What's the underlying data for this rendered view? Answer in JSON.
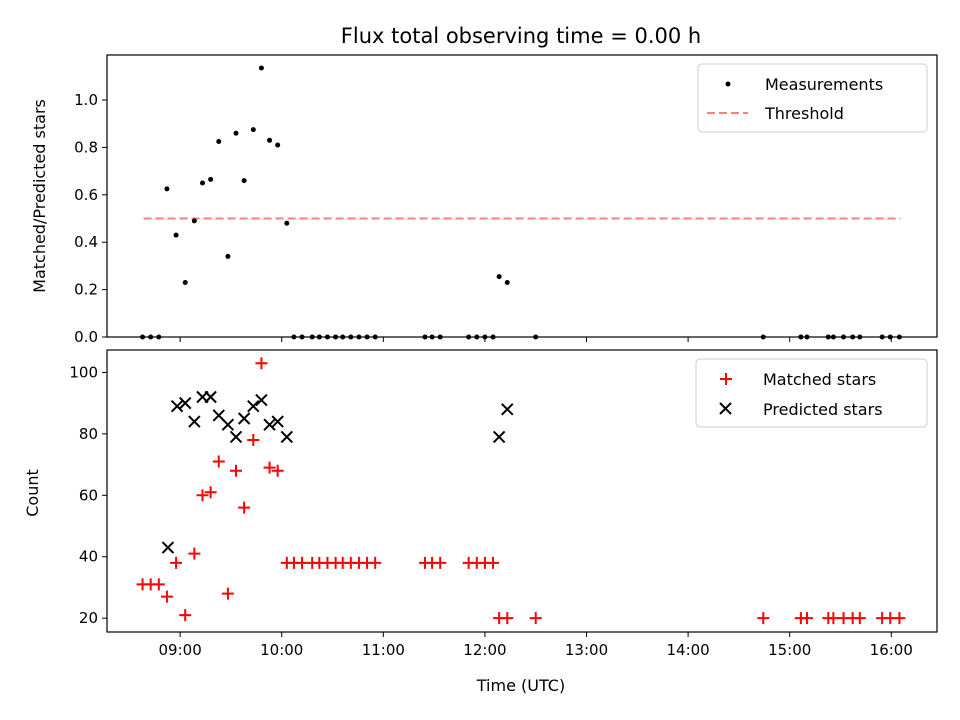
{
  "colors": {
    "threshold": "#ff7f7f",
    "matched": "#ff0000",
    "predicted": "#000000",
    "measurement": "#000000"
  },
  "chart_data": [
    {
      "type": "scatter",
      "title": "Flux total observing time = 0.00 h",
      "xlabel": "",
      "ylabel": "Matched/Predicted stars",
      "xlim": [
        8.28,
        16.45
      ],
      "ylim": [
        0.0,
        1.19
      ],
      "xticks": [
        9,
        10,
        11,
        12,
        13,
        14,
        15,
        16
      ],
      "yticks": [
        0.0,
        0.2,
        0.4,
        0.6,
        0.8,
        1.0
      ],
      "ytick_labels": [
        "0.0",
        "0.2",
        "0.4",
        "0.6",
        "0.8",
        "1.0"
      ],
      "legend": {
        "position": "top-right",
        "entries": [
          "Measurements",
          "Threshold"
        ]
      },
      "threshold": {
        "name": "Threshold",
        "y": 0.5,
        "x_range": [
          8.64,
          16.09
        ]
      },
      "series": [
        {
          "name": "Measurements",
          "x": [
            8.63,
            8.71,
            8.79,
            8.87,
            8.96,
            9.05,
            9.14,
            9.22,
            9.3,
            9.38,
            9.47,
            9.55,
            9.63,
            9.72,
            9.8,
            9.88,
            9.96,
            10.05,
            10.12,
            10.2,
            10.3,
            10.37,
            10.45,
            10.53,
            10.6,
            10.68,
            10.76,
            10.84,
            10.92,
            11.41,
            11.48,
            11.56,
            11.84,
            11.92,
            12.0,
            12.08,
            12.14,
            12.22,
            12.5,
            14.74,
            15.11,
            15.17,
            15.38,
            15.43,
            15.53,
            15.62,
            15.69,
            15.91,
            15.99,
            16.08
          ],
          "y": [
            0.0,
            0.0,
            0.0,
            0.625,
            0.43,
            0.23,
            0.49,
            0.65,
            0.665,
            0.825,
            0.34,
            0.86,
            0.66,
            0.875,
            1.135,
            0.83,
            0.81,
            0.48,
            0.0,
            0.0,
            0.0,
            0.0,
            0.0,
            0.0,
            0.0,
            0.0,
            0.0,
            0.0,
            0.0,
            0.0,
            0.0,
            0.0,
            0.0,
            0.0,
            0.0,
            0.0,
            0.255,
            0.23,
            0.0,
            0.0,
            0.0,
            0.0,
            0.0,
            0.0,
            0.0,
            0.0,
            0.0,
            0.0,
            0.0,
            0.0
          ]
        }
      ]
    },
    {
      "type": "scatter",
      "title": "",
      "xlabel": "Time (UTC)",
      "ylabel": "Count",
      "xlim": [
        8.28,
        16.45
      ],
      "ylim": [
        15.5,
        107.3
      ],
      "xticks": [
        9,
        10,
        11,
        12,
        13,
        14,
        15,
        16
      ],
      "xtick_labels": [
        "09:00",
        "10:00",
        "11:00",
        "12:00",
        "13:00",
        "14:00",
        "15:00",
        "16:00"
      ],
      "yticks": [
        20,
        40,
        60,
        80,
        100
      ],
      "ytick_labels": [
        "20",
        "40",
        "60",
        "80",
        "100"
      ],
      "legend": {
        "position": "top-right",
        "entries": [
          "Matched stars",
          "Predicted stars"
        ]
      },
      "series": [
        {
          "name": "Matched stars",
          "x": [
            8.63,
            8.71,
            8.79,
            8.87,
            8.96,
            9.05,
            9.14,
            9.22,
            9.3,
            9.38,
            9.47,
            9.55,
            9.63,
            9.72,
            9.8,
            9.88,
            9.96,
            10.05,
            10.12,
            10.2,
            10.3,
            10.37,
            10.45,
            10.53,
            10.6,
            10.68,
            10.76,
            10.84,
            10.92,
            11.41,
            11.48,
            11.56,
            11.84,
            11.92,
            12.0,
            12.08,
            12.14,
            12.22,
            12.5,
            14.74,
            15.11,
            15.17,
            15.38,
            15.43,
            15.53,
            15.62,
            15.69,
            15.91,
            15.99,
            16.08
          ],
          "y": [
            31,
            31,
            31,
            27,
            38,
            21,
            41,
            60,
            61,
            71,
            28,
            68,
            56,
            78,
            103,
            69,
            68,
            38,
            38,
            38,
            38,
            38,
            38,
            38,
            38,
            38,
            38,
            38,
            38,
            38,
            38,
            38,
            38,
            38,
            38,
            38,
            20,
            20,
            20,
            20,
            20,
            20,
            20,
            20,
            20,
            20,
            20,
            20,
            20,
            20
          ]
        },
        {
          "name": "Predicted stars",
          "x": [
            8.88,
            8.97,
            9.05,
            9.14,
            9.22,
            9.3,
            9.38,
            9.47,
            9.55,
            9.63,
            9.72,
            9.8,
            9.88,
            9.96,
            10.05,
            12.14,
            12.22
          ],
          "y": [
            43,
            89,
            90,
            84,
            92,
            92,
            86,
            83,
            79,
            85,
            89,
            91,
            83,
            84,
            79,
            79,
            88
          ]
        }
      ]
    }
  ]
}
